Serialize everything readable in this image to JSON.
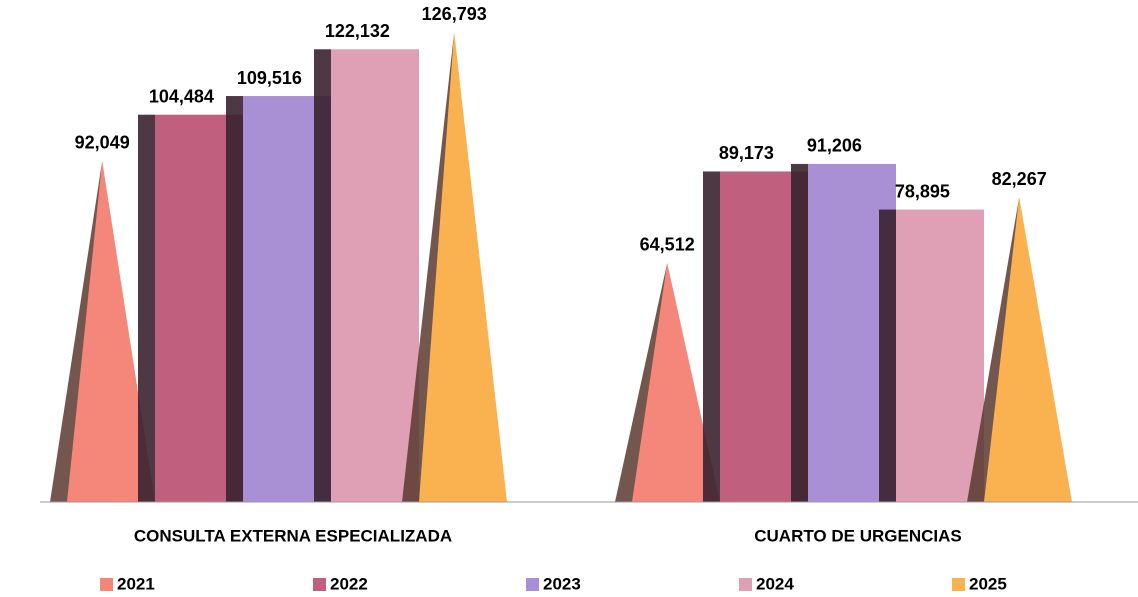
{
  "chart_data": {
    "type": "bar",
    "categories": [
      "CONSULTA EXTERNA ESPECIALIZADA",
      "CUARTO DE URGENCIAS"
    ],
    "series": [
      {
        "name": "2021",
        "color": "#f4877a",
        "shape": "triangle",
        "values": [
          92049,
          64512
        ],
        "value_labels": [
          "92,049",
          "64,512"
        ]
      },
      {
        "name": "2022",
        "color": "#c0607e",
        "shape": "bar",
        "values": [
          104484,
          89173
        ],
        "value_labels": [
          "104,484",
          "89,173"
        ]
      },
      {
        "name": "2023",
        "color": "#a98fd3",
        "shape": "bar",
        "values": [
          109516,
          91206
        ],
        "value_labels": [
          "109,516",
          "91,206"
        ]
      },
      {
        "name": "2024",
        "color": "#dfa0b5",
        "shape": "bar",
        "values": [
          122132,
          78895
        ],
        "value_labels": [
          "122,132",
          "78,895"
        ]
      },
      {
        "name": "2025",
        "color": "#f9b24f",
        "shape": "triangle",
        "values": [
          126793,
          82267
        ],
        "value_labels": [
          "126,793",
          "82,267"
        ]
      }
    ],
    "legend": "bottom"
  }
}
